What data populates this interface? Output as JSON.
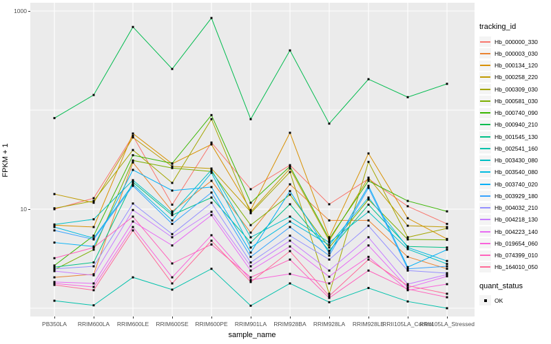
{
  "chart_data": {
    "type": "line",
    "xlabel": "sample_name",
    "ylabel": "FPKM + 1",
    "y_scale": "log10",
    "ylim": [
      1,
      1000
    ],
    "y_ticks": [
      {
        "label": "1000",
        "value": 1000
      },
      {
        "label": "10",
        "value": 10
      }
    ],
    "y_gridlines": [
      1,
      10,
      100,
      1000
    ],
    "grid": true,
    "panel_bg": "#EBEBEB",
    "grid_color": "#FFFFFF",
    "point_color": "#000000",
    "legend_position": "right",
    "legend_title": "tracking_id",
    "point_legend": {
      "title": "quant_status",
      "label": "OK"
    },
    "categories": [
      "PB350LA",
      "RRIM600LA",
      "RRIM600LE",
      "RRIM600SE",
      "RRIM600PE",
      "RRIM901LA",
      "RRIM928BA",
      "RRIM928LA",
      "RRIM928LE",
      "RRII105LA_Control",
      "RRII105LA_Stressed"
    ],
    "series": [
      {
        "name": "Hb_000000_330",
        "color": "#F8766D",
        "values": [
          10.0,
          12.9,
          55,
          11.1,
          47,
          15.9,
          27.8,
          11.2,
          20.2,
          10.7,
          7.1
        ]
      },
      {
        "name": "Hb_000003_030",
        "color": "#EA8331",
        "values": [
          2.05,
          2.2,
          29.6,
          9.5,
          19.3,
          5.8,
          17.8,
          7.7,
          7.7,
          3.3,
          2.5
        ]
      },
      {
        "name": "Hb_000134_120",
        "color": "#D89000",
        "values": [
          6.9,
          6.6,
          58,
          28.7,
          45,
          9.8,
          59,
          5.2,
          36.5,
          8.1,
          5.0
        ]
      },
      {
        "name": "Hb_000258_220",
        "color": "#C09B00",
        "values": [
          14.2,
          11.6,
          53,
          27,
          25.7,
          9.4,
          25.7,
          4.8,
          20.8,
          6.8,
          6.6
        ]
      },
      {
        "name": "Hb_000309_030",
        "color": "#A3A500",
        "values": [
          10.2,
          12.1,
          39.5,
          18.4,
          81,
          9.1,
          23.7,
          1.4,
          30,
          5.2,
          6.4
        ]
      },
      {
        "name": "Hb_000581_030",
        "color": "#7CAE00",
        "values": [
          2.45,
          3.9,
          31,
          26,
          24,
          6.9,
          14.0,
          4.1,
          12.5,
          4.95,
          4.9
        ]
      },
      {
        "name": "Hb_000740_090",
        "color": "#39B600",
        "values": [
          2.7,
          5.4,
          35,
          29,
          89,
          11.6,
          27,
          5.0,
          19.3,
          12.1,
          9.5
        ]
      },
      {
        "name": "Hb_000940_210",
        "color": "#00BB4E",
        "values": [
          83,
          142,
          690,
          260,
          850,
          81,
          400,
          73,
          205,
          135,
          184
        ]
      },
      {
        "name": "Hb_001545_130",
        "color": "#00C087",
        "values": [
          2.6,
          2.9,
          18.7,
          8.7,
          13.1,
          4.6,
          11.2,
          3.8,
          11.1,
          4.2,
          4.1
        ]
      },
      {
        "name": "Hb_002541_160",
        "color": "#00C1AB",
        "values": [
          1.19,
          1.07,
          2.05,
          1.54,
          2.5,
          1.06,
          1.78,
          1.15,
          1.6,
          1.17,
          1.0
        ]
      },
      {
        "name": "Hb_003430_080",
        "color": "#00BFC4",
        "values": [
          7.0,
          7.9,
          19.6,
          9.1,
          24.9,
          5.2,
          8.4,
          4.6,
          9.4,
          3.95,
          2.8
        ]
      },
      {
        "name": "Hb_003540_080",
        "color": "#00BAE0",
        "values": [
          6.6,
          5.1,
          17.8,
          7.7,
          23.3,
          4.1,
          7.5,
          4.35,
          13.1,
          4.1,
          3.0
        ]
      },
      {
        "name": "Hb_003740_020",
        "color": "#00B0F6",
        "values": [
          4.6,
          4.2,
          24.9,
          15.4,
          16.7,
          3.65,
          15.2,
          3.6,
          17.2,
          2.6,
          3.9
        ]
      },
      {
        "name": "Hb_003929_180",
        "color": "#35A2FF",
        "values": [
          6.1,
          4.95,
          17.2,
          7.1,
          14.7,
          3.3,
          6.6,
          3.4,
          16.4,
          2.5,
          2.65
        ]
      },
      {
        "name": "Hb_004032_210",
        "color": "#9590FF",
        "values": [
          2.5,
          2.65,
          11.4,
          5.6,
          11.6,
          2.9,
          5.4,
          3.1,
          6.8,
          2.4,
          2.26
        ]
      },
      {
        "name": "Hb_004218_130",
        "color": "#C77CFF",
        "values": [
          2.37,
          2.15,
          9.8,
          5.2,
          9.4,
          2.65,
          4.8,
          2.4,
          5.2,
          1.75,
          2.19
        ]
      },
      {
        "name": "Hb_004223_140",
        "color": "#E76BF3",
        "values": [
          1.84,
          1.78,
          7.5,
          4.3,
          8.7,
          2.4,
          4.2,
          2.08,
          4.3,
          1.61,
          2.1
        ]
      },
      {
        "name": "Hb_019654_060",
        "color": "#FA62DB",
        "values": [
          1.78,
          1.64,
          6.6,
          2.05,
          5.45,
          1.93,
          2.22,
          1.78,
          3.3,
          1.52,
          1.75
        ]
      },
      {
        "name": "Hb_074399_010",
        "color": "#FF62BC",
        "values": [
          3.2,
          4.1,
          8.4,
          2.83,
          4.4,
          2.05,
          3.1,
          1.27,
          2.4,
          1.56,
          1.29
        ]
      },
      {
        "name": "Hb_164010_050",
        "color": "#FF6A98",
        "values": [
          1.72,
          1.52,
          6.1,
          1.78,
          4.8,
          1.84,
          3.77,
          1.33,
          3.1,
          1.69,
          1.4
        ]
      }
    ]
  }
}
